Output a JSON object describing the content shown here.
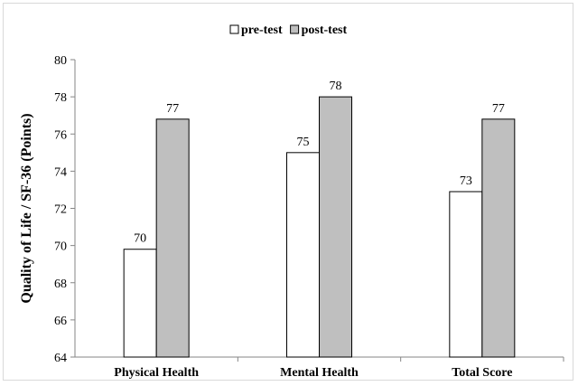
{
  "chart_data": {
    "type": "bar",
    "title": "",
    "xlabel": "",
    "ylabel": "Quality of Life / SF-36 (Points)",
    "ylim": [
      64,
      80
    ],
    "yticks": [
      64,
      66,
      68,
      70,
      72,
      74,
      76,
      78,
      80
    ],
    "grid": false,
    "legend_position": "top-center",
    "categories": [
      "Physical Health",
      "Mental Health",
      "Total Score"
    ],
    "series": [
      {
        "name": "pre-test",
        "values": [
          69.8,
          75.0,
          72.9
        ],
        "labels": [
          "70",
          "75",
          "73"
        ],
        "color": "#ffffff"
      },
      {
        "name": "post-test",
        "values": [
          76.8,
          78.0,
          76.8
        ],
        "labels": [
          "77",
          "78",
          "77"
        ],
        "color": "#bfbfbf"
      }
    ]
  }
}
